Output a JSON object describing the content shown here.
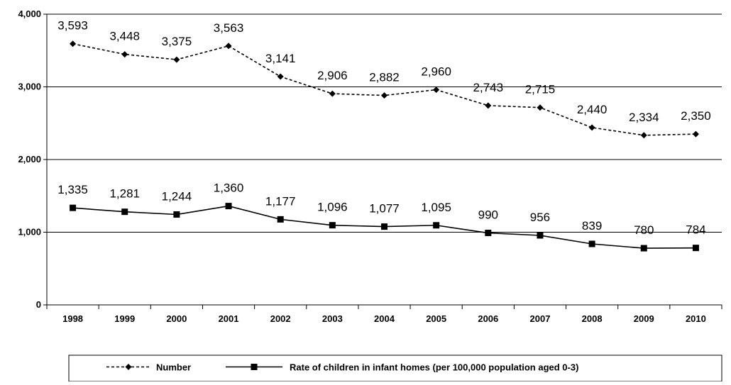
{
  "chart_data": {
    "type": "line",
    "title": "",
    "xlabel": "",
    "ylabel": "",
    "categories": [
      "1998",
      "1999",
      "2000",
      "2001",
      "2002",
      "2003",
      "2004",
      "2005",
      "2006",
      "2007",
      "2008",
      "2009",
      "2010"
    ],
    "y_ticks": [
      "0",
      "1,000",
      "2,000",
      "3,000",
      "4,000"
    ],
    "ylim": [
      0,
      4000
    ],
    "grid": "horizontal",
    "legend_position": "bottom",
    "series": [
      {
        "name": "Number",
        "style": "dashed",
        "marker": "diamond",
        "color": "#000000",
        "values": [
          3593,
          3448,
          3375,
          3563,
          3141,
          2906,
          2882,
          2960,
          2743,
          2715,
          2440,
          2334,
          2350
        ],
        "labels": [
          "3,593",
          "3,448",
          "3,375",
          "3,563",
          "3,141",
          "2,906",
          "2,882",
          "2,960",
          "2,743",
          "2,715",
          "2,440",
          "2,334",
          "2,350"
        ]
      },
      {
        "name": "Rate of children in infant homes (per 100,000 population aged 0-3)",
        "style": "solid",
        "marker": "square",
        "color": "#000000",
        "values": [
          1335,
          1281,
          1244,
          1360,
          1177,
          1096,
          1077,
          1095,
          990,
          956,
          839,
          780,
          784
        ],
        "labels": [
          "1,335",
          "1,281",
          "1,244",
          "1,360",
          "1,177",
          "1,096",
          "1,077",
          "1,095",
          "990",
          "956",
          "839",
          "780",
          "784"
        ]
      }
    ]
  }
}
